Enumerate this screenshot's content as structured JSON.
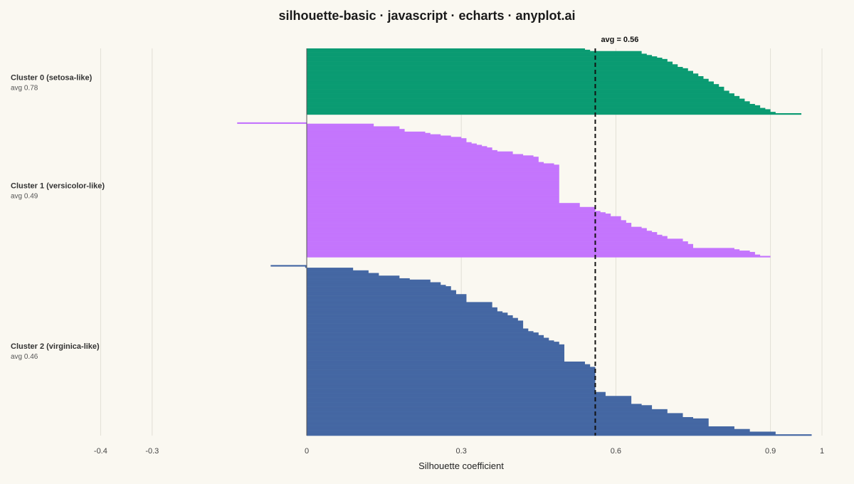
{
  "chart_data": {
    "type": "bar",
    "orientation": "horizontal",
    "title": "silhouette-basic · javascript · echarts · anyplot.ai",
    "xlabel": "Silhouette coefficient",
    "ylabel": "",
    "xlim": [
      -0.4,
      1
    ],
    "x_ticks": [
      -0.4,
      -0.3,
      0,
      0.3,
      0.6,
      0.9,
      1
    ],
    "grid": true,
    "legend": "none",
    "reference_line": {
      "value": 0.56,
      "label": "avg = 0.56",
      "style": "dashed",
      "color": "#111111"
    },
    "series": [
      {
        "name": "Cluster 0 (setosa-like)",
        "avg_label": "avg 0.78",
        "color": "#0A9B72",
        "values": [
          0.54,
          0.55,
          0.65,
          0.65,
          0.66,
          0.67,
          0.68,
          0.69,
          0.7,
          0.7,
          0.71,
          0.71,
          0.72,
          0.72,
          0.73,
          0.74,
          0.74,
          0.75,
          0.75,
          0.76,
          0.76,
          0.77,
          0.77,
          0.78,
          0.78,
          0.79,
          0.79,
          0.8,
          0.8,
          0.81,
          0.81,
          0.81,
          0.82,
          0.82,
          0.83,
          0.83,
          0.84,
          0.84,
          0.85,
          0.85,
          0.86,
          0.86,
          0.87,
          0.88,
          0.88,
          0.89,
          0.9,
          0.9,
          0.91,
          0.96
        ]
      },
      {
        "name": "Cluster 1 (versicolor-like)",
        "avg_label": "avg 0.49",
        "color": "#C475FD",
        "values": [
          -0.135,
          0.13,
          0.13,
          0.18,
          0.18,
          0.19,
          0.19,
          0.23,
          0.24,
          0.26,
          0.28,
          0.3,
          0.31,
          0.31,
          0.31,
          0.32,
          0.33,
          0.34,
          0.35,
          0.36,
          0.36,
          0.37,
          0.4,
          0.4,
          0.42,
          0.44,
          0.45,
          0.45,
          0.45,
          0.45,
          0.46,
          0.48,
          0.49,
          0.49,
          0.49,
          0.49,
          0.49,
          0.49,
          0.49,
          0.49,
          0.49,
          0.49,
          0.49,
          0.49,
          0.49,
          0.49,
          0.49,
          0.49,
          0.49,
          0.49,
          0.49,
          0.49,
          0.49,
          0.49,
          0.49,
          0.49,
          0.49,
          0.49,
          0.49,
          0.49,
          0.49,
          0.53,
          0.53,
          0.53,
          0.56,
          0.56,
          0.56,
          0.57,
          0.58,
          0.59,
          0.59,
          0.61,
          0.61,
          0.61,
          0.62,
          0.62,
          0.63,
          0.63,
          0.63,
          0.65,
          0.66,
          0.66,
          0.67,
          0.68,
          0.68,
          0.69,
          0.7,
          0.7,
          0.73,
          0.73,
          0.74,
          0.74,
          0.75,
          0.75,
          0.75,
          0.83,
          0.84,
          0.86,
          0.87,
          0.87,
          0.88,
          0.9
        ]
      },
      {
        "name": "Cluster 2 (virginica-like)",
        "avg_label": "avg 0.46",
        "color": "#4467A3",
        "values": [
          -0.07,
          -0.003,
          0.09,
          0.09,
          0.12,
          0.12,
          0.14,
          0.14,
          0.18,
          0.18,
          0.2,
          0.24,
          0.24,
          0.26,
          0.26,
          0.27,
          0.28,
          0.28,
          0.28,
          0.29,
          0.29,
          0.29,
          0.31,
          0.31,
          0.31,
          0.31,
          0.31,
          0.31,
          0.36,
          0.36,
          0.36,
          0.36,
          0.37,
          0.37,
          0.37,
          0.38,
          0.39,
          0.39,
          0.4,
          0.4,
          0.41,
          0.41,
          0.42,
          0.42,
          0.42,
          0.42,
          0.42,
          0.42,
          0.43,
          0.43,
          0.44,
          0.45,
          0.45,
          0.46,
          0.46,
          0.47,
          0.47,
          0.48,
          0.49,
          0.49,
          0.5,
          0.5,
          0.5,
          0.5,
          0.5,
          0.5,
          0.5,
          0.5,
          0.5,
          0.5,
          0.5,
          0.5,
          0.5,
          0.54,
          0.54,
          0.55,
          0.55,
          0.56,
          0.56,
          0.56,
          0.56,
          0.56,
          0.56,
          0.56,
          0.56,
          0.56,
          0.56,
          0.56,
          0.56,
          0.56,
          0.56,
          0.56,
          0.56,
          0.56,
          0.56,
          0.56,
          0.58,
          0.58,
          0.58,
          0.63,
          0.63,
          0.63,
          0.63,
          0.63,
          0.63,
          0.65,
          0.67,
          0.67,
          0.67,
          0.7,
          0.7,
          0.7,
          0.73,
          0.73,
          0.73,
          0.75,
          0.78,
          0.78,
          0.78,
          0.78,
          0.78,
          0.78,
          0.83,
          0.83,
          0.86,
          0.86,
          0.91,
          0.91,
          0.98
        ]
      }
    ]
  }
}
